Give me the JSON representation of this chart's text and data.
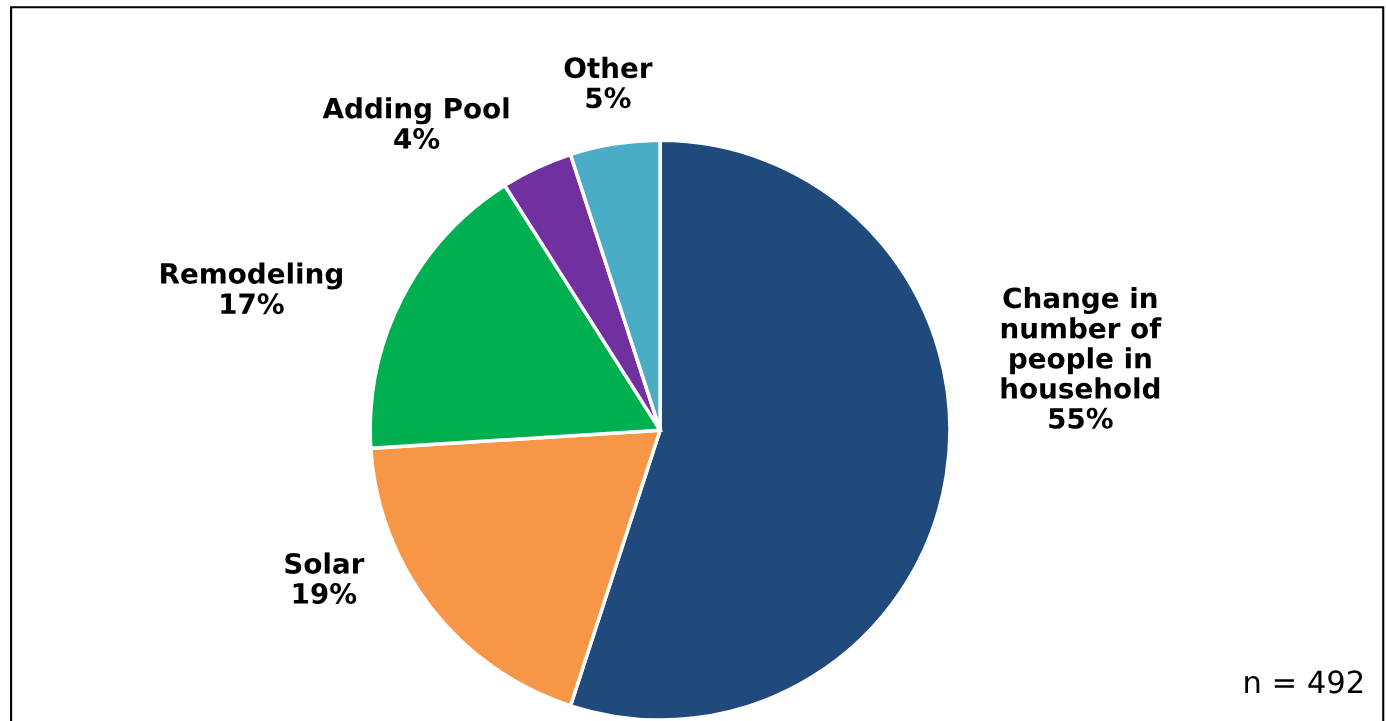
{
  "chart_data": {
    "type": "pie",
    "categories": [
      "Change in\nnumber of\npeople in\nhousehold",
      "Solar",
      "Remodeling",
      "Adding Pool",
      "Other"
    ],
    "values": [
      55,
      19,
      17,
      4,
      5
    ],
    "value_labels": [
      "55%",
      "19%",
      "17%",
      "4%",
      "5%"
    ],
    "colors": [
      "#214a7c",
      "#f79646",
      "#00b050",
      "#7030a0",
      "#4bacc6"
    ],
    "annotations": [
      "n = 492"
    ]
  }
}
